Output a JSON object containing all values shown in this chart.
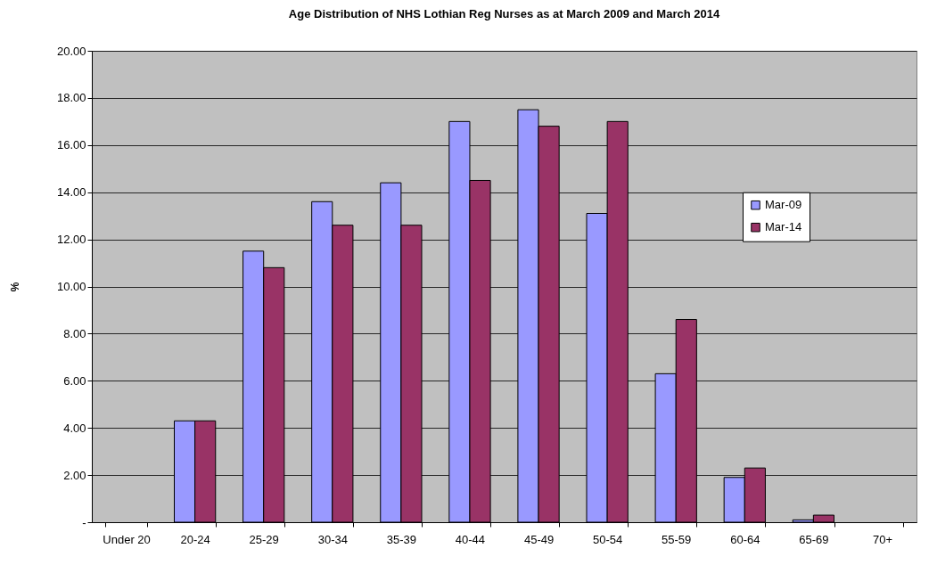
{
  "chart_data": {
    "type": "bar",
    "title": "Age Distribution of NHS Lothian Reg Nurses  as at March 2009 and March 2014",
    "ylabel": "%",
    "categories": [
      "Under 20",
      "20-24",
      "25-29",
      "30-34",
      "35-39",
      "40-44",
      "45-49",
      "50-54",
      "55-59",
      "60-64",
      "65-69",
      "70+"
    ],
    "series": [
      {
        "name": "Mar-09",
        "color": "#9999ff",
        "values": [
          null,
          4.3,
          11.5,
          13.6,
          14.4,
          17.0,
          17.5,
          13.1,
          6.3,
          1.9,
          0.1,
          null
        ]
      },
      {
        "name": "Mar-14",
        "color": "#993366",
        "values": [
          null,
          4.3,
          10.8,
          12.6,
          12.6,
          14.5,
          16.8,
          17.0,
          8.6,
          2.3,
          0.3,
          null
        ]
      }
    ],
    "ylim": [
      0,
      20
    ],
    "yticks": [
      {
        "value": 0,
        "label": "-"
      },
      {
        "value": 2,
        "label": "2.00"
      },
      {
        "value": 4,
        "label": "4.00"
      },
      {
        "value": 6,
        "label": "6.00"
      },
      {
        "value": 8,
        "label": "8.00"
      },
      {
        "value": 10,
        "label": "10.00"
      },
      {
        "value": 12,
        "label": "12.00"
      },
      {
        "value": 14,
        "label": "14.00"
      },
      {
        "value": 16,
        "label": "16.00"
      },
      {
        "value": 18,
        "label": "18.00"
      },
      {
        "value": 20,
        "label": "20.00"
      }
    ],
    "grid": "y",
    "legend": "right"
  }
}
